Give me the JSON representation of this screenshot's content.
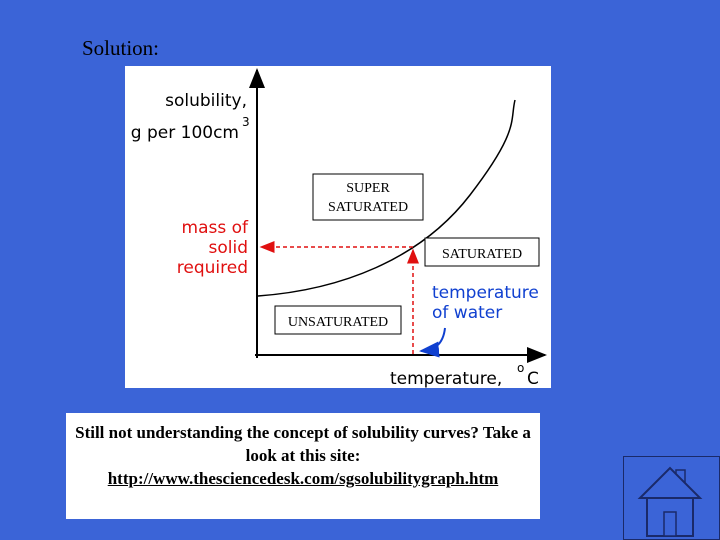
{
  "header": {
    "title": "Solution:"
  },
  "diagram": {
    "y_axis_label": {
      "line1": "solubility,",
      "line2": "g per 100cm",
      "superscript": "3"
    },
    "x_axis_label": {
      "text": "temperature,",
      "superscript": "o",
      "unit": "C"
    },
    "regions": {
      "super_saturated": [
        "SUPER",
        "SATURATED"
      ],
      "saturated": "SATURATED",
      "unsaturated": "UNSATURATED"
    },
    "mass_label": [
      "mass of",
      "solid",
      "required"
    ],
    "temperature_label": [
      "temperature",
      "of water"
    ]
  },
  "note": {
    "text": "Still not understanding the concept of solubility curves? Take a look at this site:",
    "link": "http://www.thesciencedesk.com/sgsolubilitygraph.htm"
  }
}
